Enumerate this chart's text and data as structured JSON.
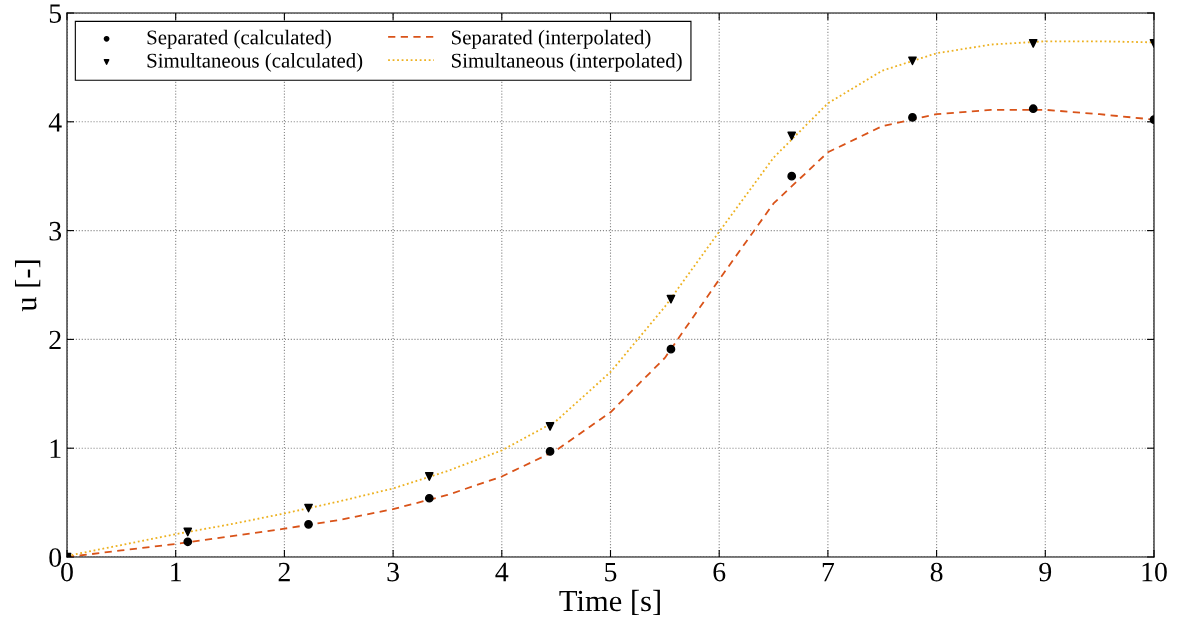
{
  "chart_data": {
    "type": "scatter",
    "xlabel": "Time [s]",
    "ylabel": "u [-]",
    "xlim": [
      0,
      10
    ],
    "ylim": [
      0,
      5
    ],
    "xticks": [
      0,
      1,
      2,
      3,
      4,
      5,
      6,
      7,
      8,
      9,
      10
    ],
    "yticks": [
      0,
      1,
      2,
      3,
      4,
      5
    ],
    "grid": true,
    "legend": "top left",
    "series": [
      {
        "name": "Separated (calculated)",
        "marker": "circle",
        "color": "#000000",
        "x": [
          0,
          1.111,
          2.222,
          3.333,
          4.444,
          5.556,
          6.667,
          7.778,
          8.889,
          10
        ],
        "values": [
          0,
          0.14,
          0.3,
          0.54,
          0.97,
          1.91,
          3.5,
          4.04,
          4.12,
          4.02
        ]
      },
      {
        "name": "Simultaneous (calculated)",
        "marker": "triangle",
        "color": "#000000",
        "x": [
          0,
          1.111,
          2.222,
          3.333,
          4.444,
          5.556,
          6.667,
          7.778,
          8.889,
          10
        ],
        "values": [
          0,
          0.23,
          0.45,
          0.74,
          1.2,
          2.37,
          3.87,
          4.56,
          4.72,
          4.72
        ]
      },
      {
        "name": "Separated (interpolated)",
        "type": "line",
        "line_style": "dashed",
        "color": "#d95319",
        "x": [
          0,
          0.5,
          1,
          1.5,
          2,
          2.5,
          3,
          3.5,
          4,
          4.5,
          5,
          5.5,
          6,
          6.5,
          7,
          7.5,
          8,
          8.5,
          9,
          9.5,
          10
        ],
        "values": [
          0,
          0.06,
          0.12,
          0.19,
          0.26,
          0.34,
          0.44,
          0.57,
          0.74,
          0.98,
          1.33,
          1.83,
          2.55,
          3.25,
          3.72,
          3.96,
          4.07,
          4.11,
          4.11,
          4.07,
          4.02
        ]
      },
      {
        "name": "Simultaneous (interpolated)",
        "type": "line",
        "line_style": "dotted",
        "color": "#edb120",
        "x": [
          0,
          0.5,
          1,
          1.5,
          2,
          2.5,
          3,
          3.5,
          4,
          4.5,
          5,
          5.5,
          6,
          6.5,
          7,
          7.5,
          8,
          8.5,
          9,
          9.5,
          10
        ],
        "values": [
          0.01,
          0.11,
          0.21,
          0.3,
          0.4,
          0.51,
          0.63,
          0.79,
          0.98,
          1.25,
          1.7,
          2.3,
          2.99,
          3.67,
          4.17,
          4.47,
          4.63,
          4.71,
          4.74,
          4.74,
          4.73
        ]
      }
    ]
  }
}
